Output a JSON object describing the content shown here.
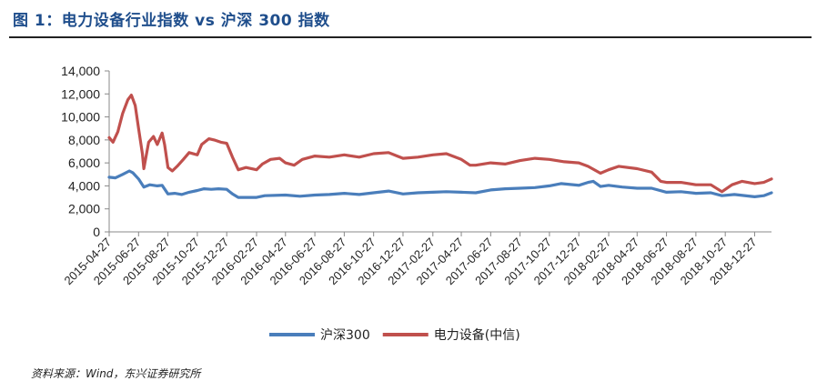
{
  "title": "图 1：电力设备行业指数 vs 沪深 300 指数",
  "source": "资料来源：Wind，东兴证券研究所",
  "chart_data": {
    "type": "line",
    "title": "",
    "xlabel": "",
    "ylabel": "",
    "ylim": [
      0,
      14000
    ],
    "yticks": [
      0,
      2000,
      4000,
      6000,
      8000,
      10000,
      12000,
      14000
    ],
    "ytick_labels": [
      "0",
      "2,000",
      "4,000",
      "6,000",
      "8,000",
      "10,000",
      "12,000",
      "14,000"
    ],
    "x_range": [
      "2015-04-27",
      "2019-01-31"
    ],
    "xtick_labels": [
      "2015-04-27",
      "2015-06-27",
      "2015-08-27",
      "2015-10-27",
      "2015-12-27",
      "2016-02-27",
      "2016-04-27",
      "2016-06-27",
      "2016-08-27",
      "2016-10-27",
      "2016-12-27",
      "2017-02-27",
      "2017-04-27",
      "2017-06-27",
      "2017-08-27",
      "2017-10-27",
      "2017-12-27",
      "2018-02-27",
      "2018-04-27",
      "2018-06-27",
      "2018-08-27",
      "2018-10-27",
      "2018-12-27"
    ],
    "grid": false,
    "legend_position": "bottom",
    "series": [
      {
        "name": "沪深300",
        "color": "#4a7ebb",
        "points": [
          [
            "2015-04-27",
            4750
          ],
          [
            "2015-05-10",
            4700
          ],
          [
            "2015-05-25",
            5000
          ],
          [
            "2015-06-08",
            5300
          ],
          [
            "2015-06-15",
            5150
          ],
          [
            "2015-06-27",
            4600
          ],
          [
            "2015-07-08",
            3900
          ],
          [
            "2015-07-20",
            4100
          ],
          [
            "2015-08-05",
            4000
          ],
          [
            "2015-08-15",
            4050
          ],
          [
            "2015-08-27",
            3300
          ],
          [
            "2015-09-10",
            3350
          ],
          [
            "2015-09-25",
            3250
          ],
          [
            "2015-10-10",
            3450
          ],
          [
            "2015-10-27",
            3600
          ],
          [
            "2015-11-10",
            3750
          ],
          [
            "2015-11-25",
            3700
          ],
          [
            "2015-12-10",
            3750
          ],
          [
            "2015-12-27",
            3700
          ],
          [
            "2016-01-08",
            3300
          ],
          [
            "2016-01-20",
            3000
          ],
          [
            "2016-02-05",
            3000
          ],
          [
            "2016-02-27",
            3000
          ],
          [
            "2016-03-15",
            3150
          ],
          [
            "2016-04-27",
            3200
          ],
          [
            "2016-05-27",
            3100
          ],
          [
            "2016-06-27",
            3200
          ],
          [
            "2016-07-27",
            3250
          ],
          [
            "2016-08-27",
            3350
          ],
          [
            "2016-09-27",
            3250
          ],
          [
            "2016-10-27",
            3400
          ],
          [
            "2016-11-27",
            3550
          ],
          [
            "2016-12-27",
            3300
          ],
          [
            "2017-01-27",
            3400
          ],
          [
            "2017-02-27",
            3450
          ],
          [
            "2017-03-27",
            3500
          ],
          [
            "2017-04-27",
            3450
          ],
          [
            "2017-05-27",
            3400
          ],
          [
            "2017-06-27",
            3650
          ],
          [
            "2017-07-27",
            3750
          ],
          [
            "2017-08-27",
            3800
          ],
          [
            "2017-09-27",
            3850
          ],
          [
            "2017-10-27",
            4000
          ],
          [
            "2017-11-20",
            4200
          ],
          [
            "2017-12-27",
            4050
          ],
          [
            "2018-01-15",
            4300
          ],
          [
            "2018-01-26",
            4400
          ],
          [
            "2018-02-10",
            3950
          ],
          [
            "2018-02-27",
            4050
          ],
          [
            "2018-03-27",
            3900
          ],
          [
            "2018-04-27",
            3800
          ],
          [
            "2018-05-27",
            3800
          ],
          [
            "2018-06-27",
            3450
          ],
          [
            "2018-07-27",
            3500
          ],
          [
            "2018-08-27",
            3350
          ],
          [
            "2018-09-27",
            3400
          ],
          [
            "2018-10-20",
            3150
          ],
          [
            "2018-11-15",
            3250
          ],
          [
            "2018-12-27",
            3050
          ],
          [
            "2019-01-15",
            3150
          ],
          [
            "2019-01-31",
            3400
          ]
        ]
      },
      {
        "name": "电力设备(中信)",
        "color": "#c0504d",
        "points": [
          [
            "2015-04-27",
            8200
          ],
          [
            "2015-05-05",
            7800
          ],
          [
            "2015-05-15",
            8700
          ],
          [
            "2015-05-25",
            10300
          ],
          [
            "2015-06-05",
            11500
          ],
          [
            "2015-06-12",
            11900
          ],
          [
            "2015-06-20",
            11000
          ],
          [
            "2015-06-27",
            9000
          ],
          [
            "2015-07-05",
            6800
          ],
          [
            "2015-07-08",
            5500
          ],
          [
            "2015-07-18",
            7800
          ],
          [
            "2015-07-28",
            8300
          ],
          [
            "2015-08-05",
            7600
          ],
          [
            "2015-08-15",
            8600
          ],
          [
            "2015-08-20",
            7600
          ],
          [
            "2015-08-27",
            5600
          ],
          [
            "2015-09-05",
            5300
          ],
          [
            "2015-09-15",
            5700
          ],
          [
            "2015-09-28",
            6300
          ],
          [
            "2015-10-10",
            6900
          ],
          [
            "2015-10-27",
            6700
          ],
          [
            "2015-11-05",
            7600
          ],
          [
            "2015-11-20",
            8100
          ],
          [
            "2015-12-01",
            8000
          ],
          [
            "2015-12-15",
            7800
          ],
          [
            "2015-12-27",
            7700
          ],
          [
            "2016-01-08",
            6500
          ],
          [
            "2016-01-20",
            5400
          ],
          [
            "2016-02-05",
            5600
          ],
          [
            "2016-02-27",
            5400
          ],
          [
            "2016-03-10",
            5900
          ],
          [
            "2016-03-27",
            6300
          ],
          [
            "2016-04-15",
            6400
          ],
          [
            "2016-04-27",
            6000
          ],
          [
            "2016-05-15",
            5800
          ],
          [
            "2016-06-01",
            6300
          ],
          [
            "2016-06-27",
            6600
          ],
          [
            "2016-07-27",
            6500
          ],
          [
            "2016-08-27",
            6700
          ],
          [
            "2016-09-27",
            6500
          ],
          [
            "2016-10-27",
            6800
          ],
          [
            "2016-11-27",
            6900
          ],
          [
            "2016-12-15",
            6600
          ],
          [
            "2016-12-27",
            6400
          ],
          [
            "2017-01-27",
            6500
          ],
          [
            "2017-02-27",
            6700
          ],
          [
            "2017-03-27",
            6800
          ],
          [
            "2017-04-27",
            6300
          ],
          [
            "2017-05-15",
            5800
          ],
          [
            "2017-05-27",
            5800
          ],
          [
            "2017-06-27",
            6000
          ],
          [
            "2017-07-27",
            5900
          ],
          [
            "2017-08-27",
            6200
          ],
          [
            "2017-09-27",
            6400
          ],
          [
            "2017-10-27",
            6300
          ],
          [
            "2017-11-27",
            6100
          ],
          [
            "2017-12-27",
            6000
          ],
          [
            "2018-01-15",
            5700
          ],
          [
            "2018-02-10",
            5100
          ],
          [
            "2018-02-27",
            5400
          ],
          [
            "2018-03-20",
            5700
          ],
          [
            "2018-04-27",
            5500
          ],
          [
            "2018-05-27",
            5200
          ],
          [
            "2018-06-15",
            4400
          ],
          [
            "2018-06-27",
            4300
          ],
          [
            "2018-07-27",
            4300
          ],
          [
            "2018-08-27",
            4100
          ],
          [
            "2018-09-27",
            4100
          ],
          [
            "2018-10-20",
            3500
          ],
          [
            "2018-11-10",
            4100
          ],
          [
            "2018-12-01",
            4400
          ],
          [
            "2018-12-27",
            4200
          ],
          [
            "2019-01-15",
            4300
          ],
          [
            "2019-01-31",
            4600
          ]
        ]
      }
    ]
  }
}
